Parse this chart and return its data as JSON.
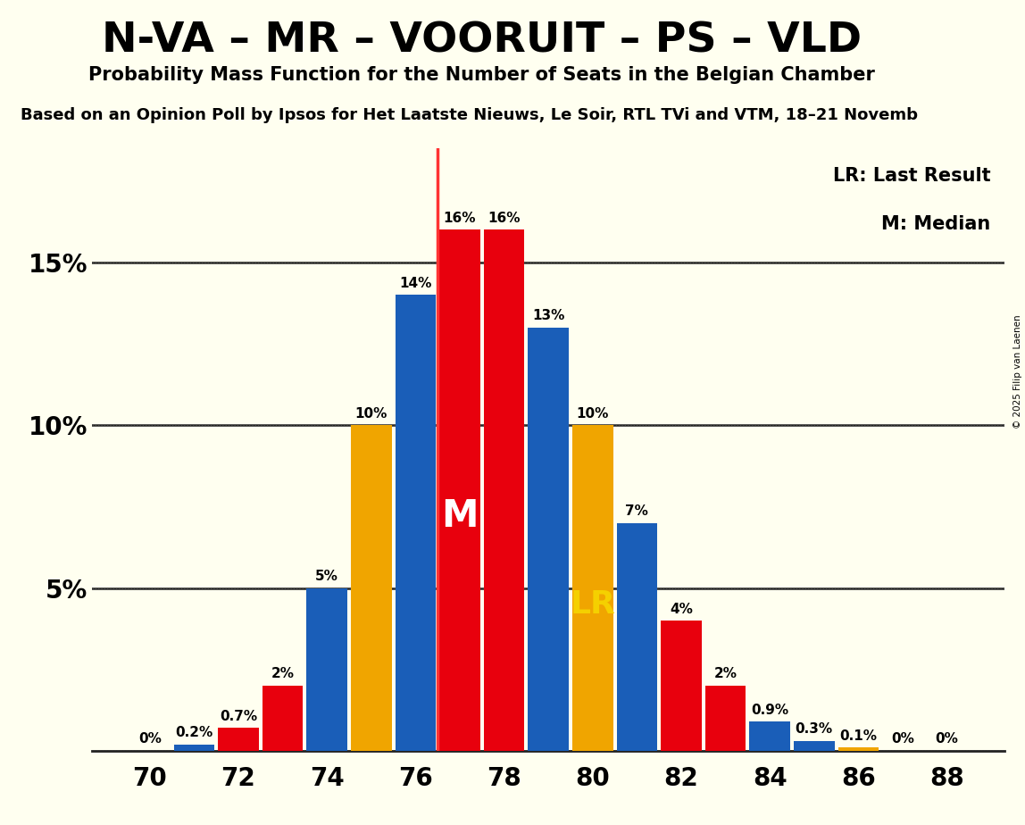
{
  "title": "N-VA – MR – VOORUIT – PS – VLD",
  "subtitle": "Probability Mass Function for the Number of Seats in the Belgian Chamber",
  "subtitle2": "Based on an Opinion Poll by Ipsos for Het Laatste Nieuws, Le Soir, RTL TVi and VTM, 18–21 Novemb",
  "copyright": "© 2025 Filip van Laenen",
  "colors": {
    "blue": "#1a5eb8",
    "red": "#e8000d",
    "gold": "#f0a500",
    "background": "#fffff0",
    "median_line": "#ff3333",
    "text": "#111111"
  },
  "seats": [
    70,
    71,
    72,
    73,
    74,
    75,
    76,
    77,
    78,
    79,
    80,
    81,
    82,
    83,
    84,
    85,
    86,
    87,
    88
  ],
  "probs": [
    0.0,
    0.002,
    0.007,
    0.02,
    0.05,
    0.1,
    0.14,
    0.16,
    0.16,
    0.13,
    0.1,
    0.07,
    0.04,
    0.02,
    0.009,
    0.003,
    0.001,
    0.0,
    0.0
  ],
  "bar_colors": [
    "blue",
    "blue",
    "red",
    "red",
    "blue",
    "gold",
    "blue",
    "red",
    "red",
    "blue",
    "gold",
    "blue",
    "red",
    "red",
    "blue",
    "blue",
    "gold",
    "blue",
    "blue"
  ],
  "bar_labels": [
    "0%",
    "0.2%",
    "0.7%",
    "2%",
    "5%",
    "10%",
    "14%",
    "16%",
    "16%",
    "13%",
    "10%",
    "7%",
    "4%",
    "2%",
    "0.9%",
    "0.3%",
    "0.1%",
    "0%",
    "0%"
  ],
  "median": 77,
  "last_result": 80,
  "xticks": [
    70,
    72,
    74,
    76,
    78,
    80,
    82,
    84,
    86,
    88
  ],
  "yticks": [
    0.0,
    0.05,
    0.1,
    0.15
  ],
  "ytick_labels": [
    "",
    "5%",
    "10%",
    "15%"
  ],
  "xlim": [
    68.7,
    89.3
  ],
  "ylim": [
    0,
    0.185
  ]
}
